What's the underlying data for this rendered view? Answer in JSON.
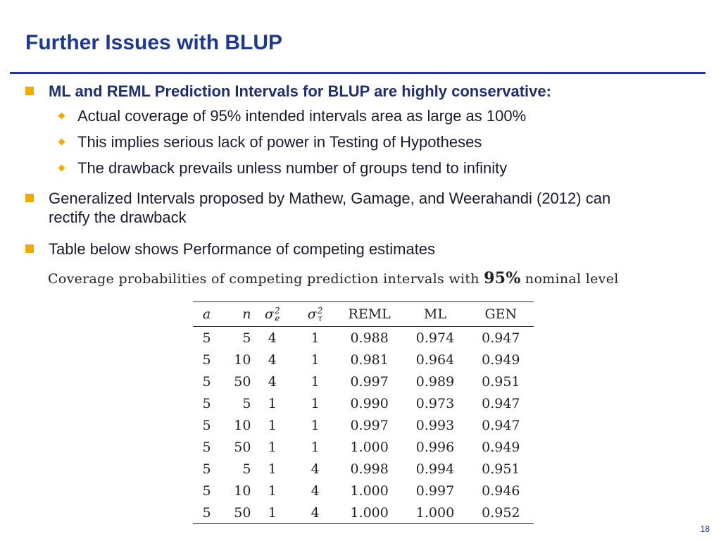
{
  "slide": {
    "title": "Further Issues with BLUP",
    "page_number": "18"
  },
  "bullets": {
    "b1": "ML and REML Prediction Intervals for BLUP are highly conservative:",
    "b1_subs": [
      "Actual coverage of 95% intended intervals area as large as 100%",
      "This implies serious lack of power in Testing of Hypotheses",
      "The drawback prevails unless number of groups tend to infinity"
    ],
    "b2_line1": "Generalized Intervals proposed by Mathew, Gamage, and Weerahandi (2012) can",
    "b2_line2": "rectify the drawback",
    "b3": "Table below shows Performance of competing estimates"
  },
  "table": {
    "caption_pre": "Coverage probabilities of competing prediction intervals with ",
    "caption_pct": "95%",
    "caption_post": " nominal level",
    "headers": {
      "a": "a",
      "n": "n",
      "sigma": "σ",
      "sup": "2",
      "sub_e": "e",
      "sub_tau": "τ",
      "reml": "REML",
      "ml": "ML",
      "gen": "GEN"
    },
    "rows": [
      [
        "5",
        "5",
        "4",
        "1",
        "0.988",
        "0.974",
        "0.947"
      ],
      [
        "5",
        "10",
        "4",
        "1",
        "0.981",
        "0.964",
        "0.949"
      ],
      [
        "5",
        "50",
        "4",
        "1",
        "0.997",
        "0.989",
        "0.951"
      ],
      [
        "5",
        "5",
        "1",
        "1",
        "0.990",
        "0.973",
        "0.947"
      ],
      [
        "5",
        "10",
        "1",
        "1",
        "0.997",
        "0.993",
        "0.947"
      ],
      [
        "5",
        "50",
        "1",
        "1",
        "1.000",
        "0.996",
        "0.949"
      ],
      [
        "5",
        "5",
        "1",
        "4",
        "0.998",
        "0.994",
        "0.951"
      ],
      [
        "5",
        "10",
        "1",
        "4",
        "1.000",
        "0.997",
        "0.946"
      ],
      [
        "5",
        "50",
        "1",
        "4",
        "1.000",
        "1.000",
        "0.952"
      ]
    ]
  },
  "colors": {
    "title": "#1f3a8a",
    "bullet_accent": "#f2a900",
    "rule": "#1f3a8a"
  }
}
